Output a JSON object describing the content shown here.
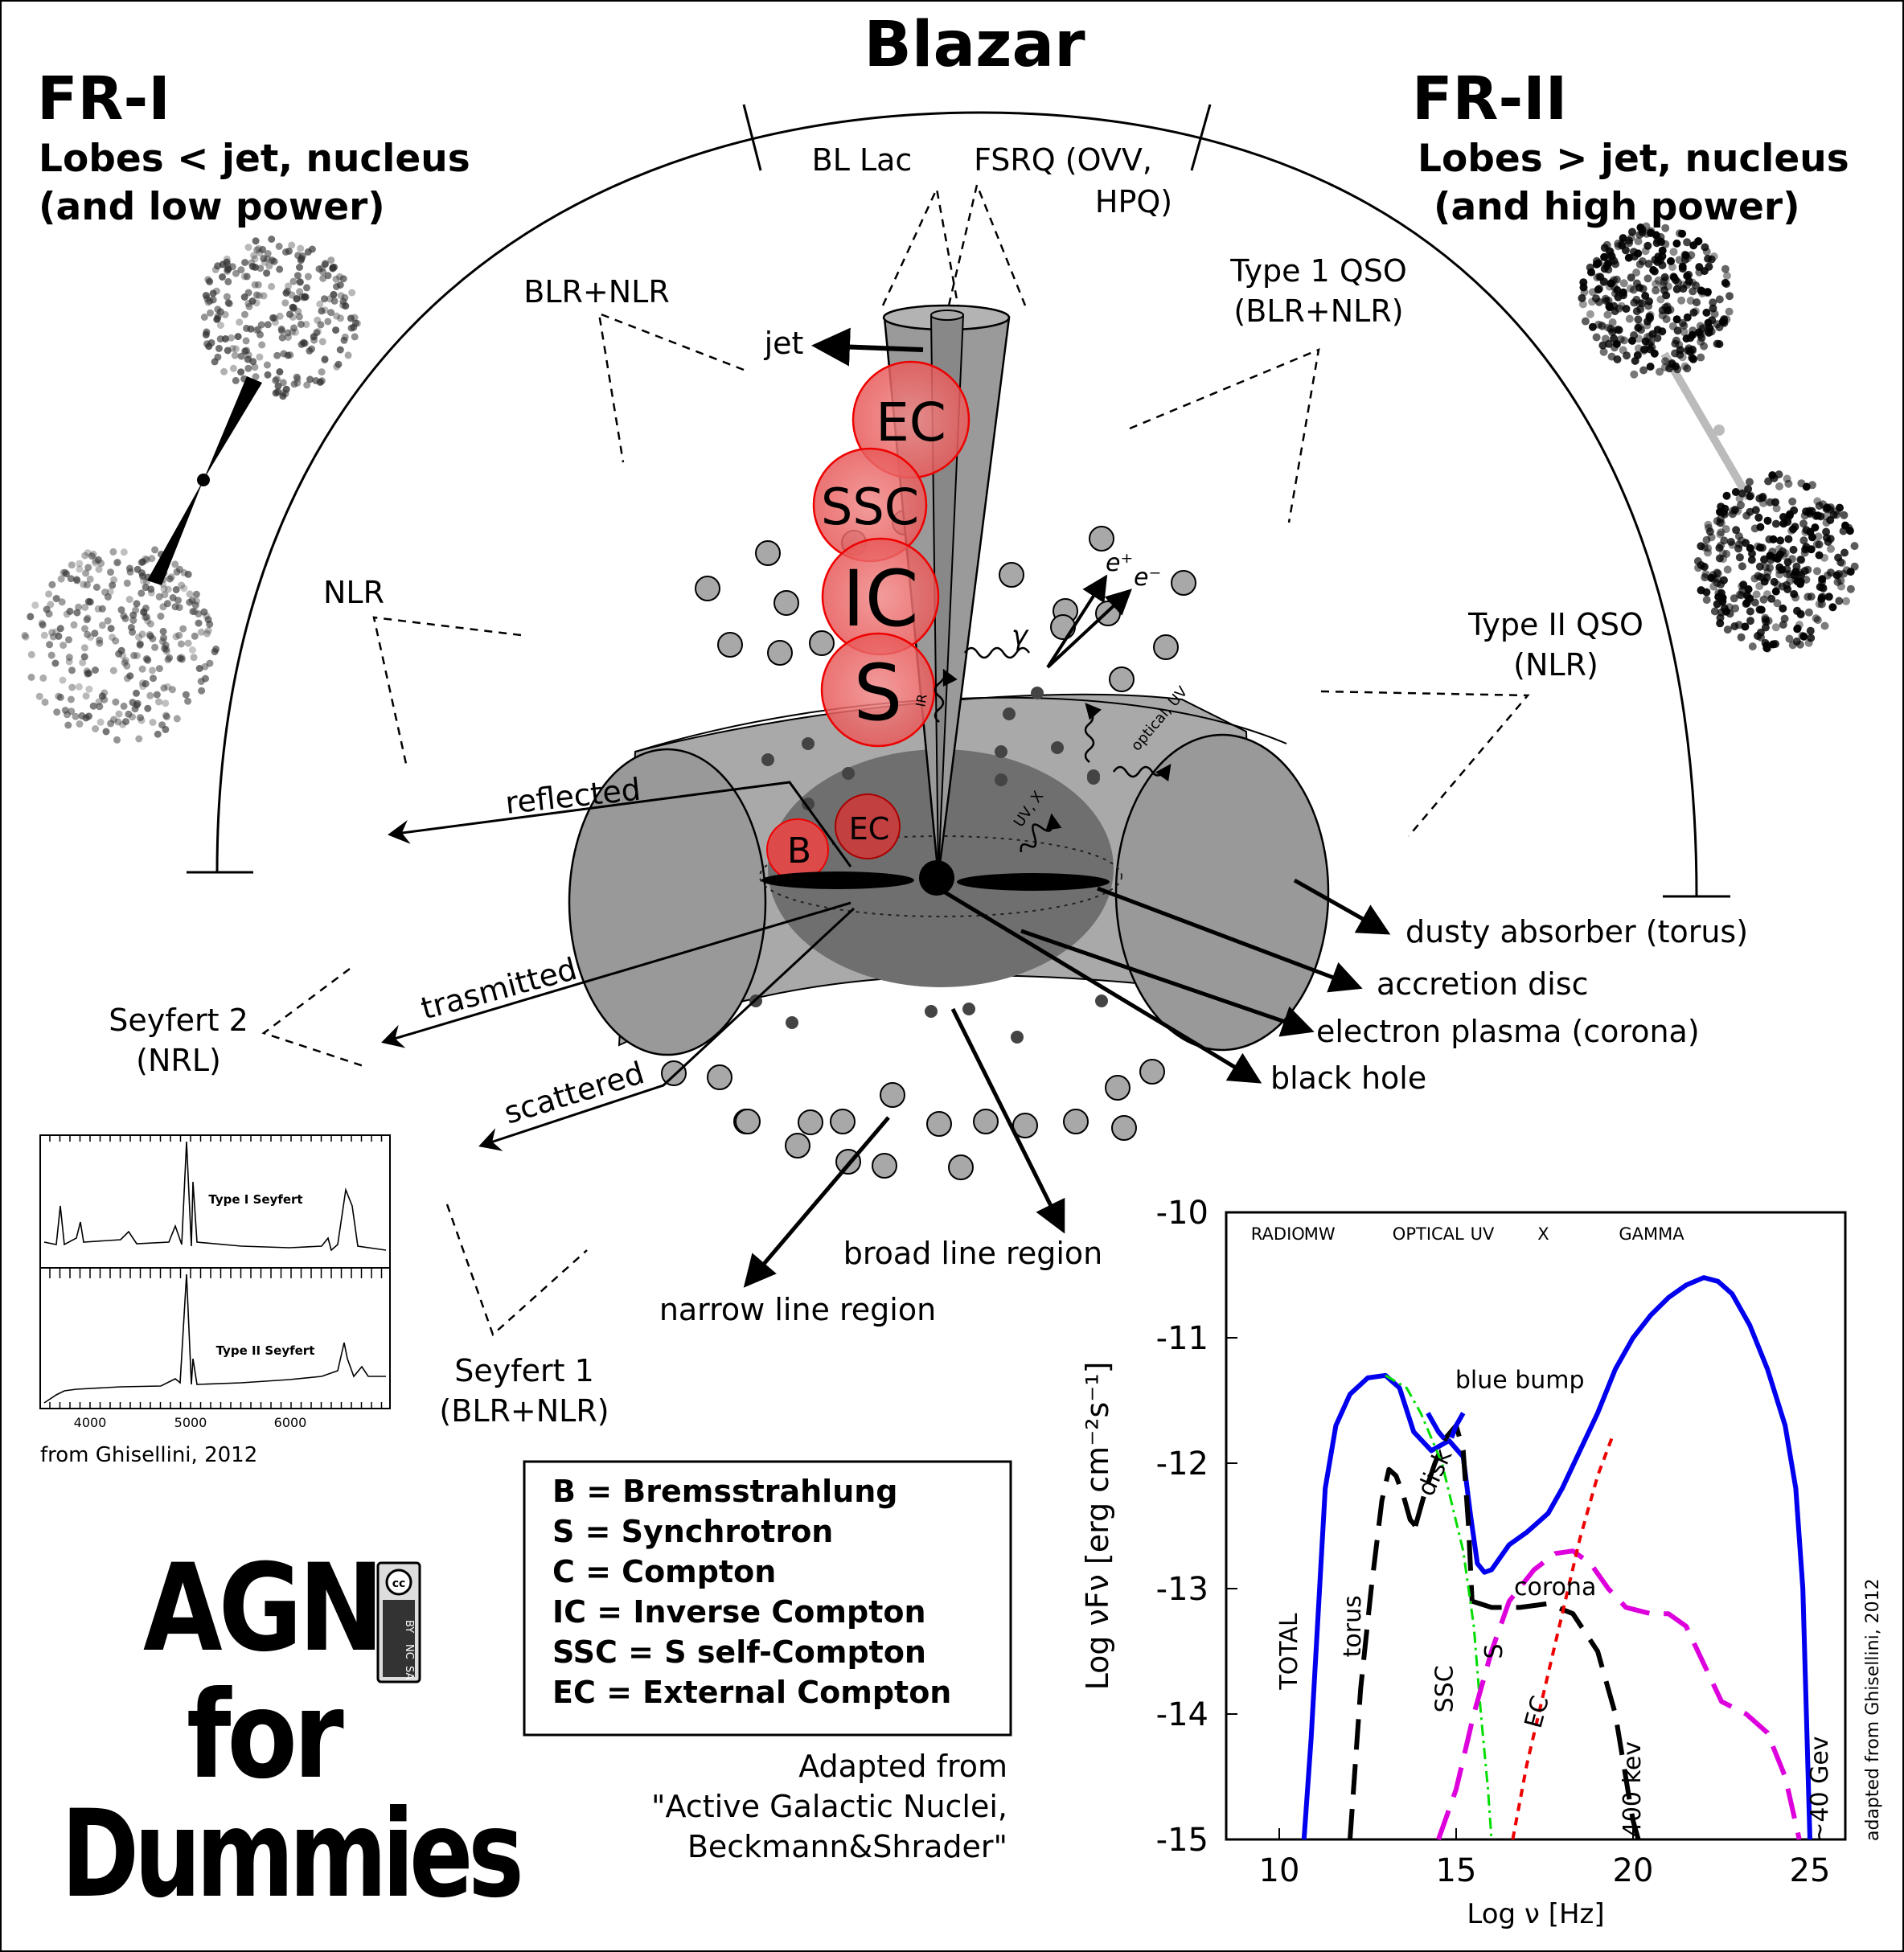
{
  "title": "Blazar",
  "fr1": {
    "heading": "FR-I",
    "line1": "Lobes < jet, nucleus",
    "line2": "(and low power)"
  },
  "fr2": {
    "heading": "FR-II",
    "line1": "Lobes > jet, nucleus",
    "line2": "(and high power)"
  },
  "classes": {
    "bllac": "BL Lac",
    "fsrq1": "FSRQ (OVV,",
    "fsrq2": "HPQ)",
    "blr_nlr": "BLR+NLR",
    "type1_1": "Type 1 QSO",
    "type1_2": "(BLR+NLR)",
    "nlr": "NLR",
    "type2_1": "Type II QSO",
    "type2_2": "(NLR)",
    "seyfert2_1": "Seyfert 2",
    "seyfert2_2": "(NRL)",
    "seyfert1_1": "Seyfert 1",
    "seyfert1_2": "(BLR+NLR)"
  },
  "components": {
    "jet": "jet",
    "ec": "EC",
    "ssc": "SSC",
    "ic": "IC",
    "s": "S",
    "b": "B",
    "ec_small": "EC",
    "gamma": "γ",
    "eplus": "e⁺",
    "eminus": "e⁻",
    "ir": "IR",
    "optical_uv": "optical, UV",
    "uv_x": "UV, X",
    "reflected": "reflected",
    "transmitted": "trasmitted",
    "scattered": "scattered",
    "torus": "dusty absorber (torus)",
    "disc": "accretion disc",
    "corona": "electron plasma (corona)",
    "bh": "black hole",
    "blr": "broad line region",
    "nlr_region": "narrow line region"
  },
  "spectrum": {
    "type1": "Type I Seyfert",
    "type2": "Type II Seyfert",
    "ticks": [
      "4000",
      "5000",
      "6000"
    ],
    "credit": "from Ghisellini, 2012"
  },
  "legend": [
    "B = Bremsstrahlung",
    "S = Synchrotron",
    "C = Compton",
    "IC = Inverse Compton",
    "SSC = S self-Compton",
    "EC = External Compton"
  ],
  "adapted": [
    "Adapted from",
    "\"Active Galactic Nuclei,",
    "Beckmann&Shrader\""
  ],
  "logo": {
    "line1": "AGN",
    "line2": "for",
    "line3": "Dummies",
    "cc": [
      "cc",
      "BY",
      "NC",
      "SA"
    ]
  },
  "chart_data": {
    "type": "line",
    "xlabel": "Log ν [Hz]",
    "ylabel": "Log νFν [erg cm⁻²s⁻¹]",
    "xlim": [
      8.5,
      26
    ],
    "ylim": [
      -15,
      -10
    ],
    "xticks": [
      10,
      15,
      20,
      25
    ],
    "yticks": [
      -10,
      -11,
      -12,
      -13,
      -14,
      -15
    ],
    "bands": [
      "RADIO",
      "MW",
      "OPTICAL",
      "UV",
      "X",
      "GAMMA"
    ],
    "band_x": [
      9.2,
      10.7,
      13.2,
      15.4,
      17.3,
      19.6
    ],
    "side_credit": "adapted from Ghisellini, 2012",
    "annotations": [
      {
        "text": "blue bump",
        "x": 16.8,
        "y": -11.4
      },
      {
        "text": "disk",
        "x": 14.6,
        "y": -12.1
      },
      {
        "text": "corona",
        "x": 17.8,
        "y": -13.05
      },
      {
        "text": "torus",
        "x": 12.3,
        "y": -13.3
      },
      {
        "text": "TOTAL",
        "x": 10.5,
        "y": -13.5
      },
      {
        "text": "SSC",
        "x": 14.9,
        "y": -13.8
      },
      {
        "text": "S",
        "x": 16.3,
        "y": -13.5
      },
      {
        "text": "EC",
        "x": 17.5,
        "y": -14.0
      },
      {
        "text": "400 kev",
        "x": 20.2,
        "y": -14.6
      },
      {
        "text": "~40 Gev",
        "x": 25.5,
        "y": -14.6
      }
    ],
    "series": [
      {
        "name": "TOTAL",
        "color": "#0000ee",
        "style": "solid",
        "x": [
          10.7,
          10.9,
          11.1,
          11.3,
          11.6,
          12.0,
          12.5,
          13.0,
          13.4,
          13.8,
          14.3,
          14.8,
          15.2,
          15.4,
          15.6,
          15.8,
          16.0,
          16.5,
          17.0,
          17.6,
          18.0,
          18.5,
          19.0,
          19.5,
          20.0,
          20.5,
          21.0,
          21.5,
          22.0,
          22.4,
          22.8,
          23.3,
          23.8,
          24.3,
          24.6,
          24.8,
          24.9,
          25.0
        ],
        "y": [
          -15.0,
          -14.2,
          -13.2,
          -12.2,
          -11.7,
          -11.45,
          -11.32,
          -11.3,
          -11.4,
          -11.75,
          -11.9,
          -11.82,
          -11.95,
          -12.4,
          -12.8,
          -12.87,
          -12.85,
          -12.65,
          -12.55,
          -12.4,
          -12.2,
          -11.9,
          -11.6,
          -11.25,
          -11.0,
          -10.82,
          -10.68,
          -10.58,
          -10.52,
          -10.55,
          -10.65,
          -10.9,
          -11.25,
          -11.7,
          -12.2,
          -13.0,
          -14.0,
          -15.0
        ]
      },
      {
        "name": "torus",
        "color": "#000000",
        "style": "dashed",
        "x": [
          12.0,
          12.3,
          12.6,
          12.9,
          13.1,
          13.3,
          13.5,
          13.7,
          13.85
        ],
        "y": [
          -15.0,
          -13.8,
          -13.0,
          -12.3,
          -12.05,
          -12.1,
          -12.25,
          -12.45,
          -12.5
        ]
      },
      {
        "name": "disk",
        "color": "#000000",
        "style": "dashed",
        "x": [
          13.85,
          14.1,
          14.4,
          14.7,
          15.0,
          15.2,
          15.35,
          15.45
        ],
        "y": [
          -12.5,
          -12.25,
          -12.0,
          -11.8,
          -11.7,
          -11.9,
          -12.5,
          -13.1
        ]
      },
      {
        "name": "corona",
        "color": "#000000",
        "style": "dashed",
        "x": [
          15.45,
          16.0,
          16.8,
          17.6,
          18.3,
          19.0,
          19.5,
          19.85,
          20.0,
          20.15
        ],
        "y": [
          -13.1,
          -13.15,
          -13.15,
          -13.12,
          -13.2,
          -13.5,
          -14.0,
          -14.6,
          -14.85,
          -15.0
        ]
      },
      {
        "name": "blue bump",
        "color": "#0000ee",
        "style": "dashed",
        "x": [
          14.2,
          14.5,
          14.8,
          15.0,
          15.2
        ],
        "y": [
          -11.6,
          -11.75,
          -11.85,
          -11.7,
          -11.6
        ]
      },
      {
        "name": "S",
        "color": "#00dd00",
        "style": "dashdot",
        "x": [
          13.0,
          13.6,
          14.0,
          14.6,
          15.2,
          15.5,
          15.7,
          15.9,
          16.0
        ],
        "y": [
          -11.3,
          -11.4,
          -11.6,
          -12.0,
          -12.7,
          -13.3,
          -14.0,
          -14.6,
          -15.0
        ]
      },
      {
        "name": "SSC",
        "color": "#dd00dd",
        "style": "dashed",
        "x": [
          14.5,
          15.0,
          15.5,
          16.0,
          16.5,
          17.2,
          17.8,
          18.3,
          18.8,
          19.3,
          19.8,
          20.5,
          21.0,
          21.5,
          22.0,
          22.5,
          23.2,
          23.8,
          24.3,
          24.7
        ],
        "y": [
          -15.0,
          -14.6,
          -14.0,
          -13.5,
          -13.1,
          -12.85,
          -12.72,
          -12.7,
          -12.8,
          -13.0,
          -13.15,
          -13.2,
          -13.2,
          -13.3,
          -13.6,
          -13.9,
          -14.0,
          -14.15,
          -14.5,
          -15.0
        ]
      },
      {
        "name": "EC",
        "color": "#ee0000",
        "style": "dotted",
        "x": [
          16.6,
          17.0,
          17.5,
          18.0,
          18.5,
          19.0,
          19.4
        ],
        "y": [
          -15.0,
          -14.4,
          -13.8,
          -13.2,
          -12.6,
          -12.1,
          -11.8
        ]
      }
    ]
  }
}
